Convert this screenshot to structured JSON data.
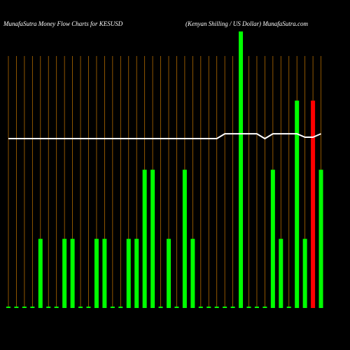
{
  "chart_data": {
    "type": "bar",
    "title": "MunafaSutra  Money Flow  Charts for KESUSD",
    "subtitle": "(Kenyan  Shilling / US Dollar) MunafaSutra.com",
    "categories": [
      null,
      null,
      null,
      null,
      null,
      null,
      null,
      null,
      null,
      null,
      null,
      null,
      null,
      null,
      null,
      null,
      null,
      null,
      null,
      null,
      null,
      null,
      null,
      null,
      null,
      null,
      null,
      null,
      null,
      null,
      null,
      null,
      null,
      null,
      null,
      null,
      null,
      null,
      null,
      null
    ],
    "values": [
      0.02,
      0.02,
      0.02,
      0.02,
      1,
      0.02,
      0.02,
      1,
      1,
      0.02,
      0.02,
      1,
      1,
      0.02,
      0.02,
      1,
      1,
      2,
      2,
      0.02,
      1,
      0.02,
      2,
      1,
      0.02,
      0.02,
      0.02,
      0.02,
      0.02,
      4,
      0.02,
      0.02,
      0.02,
      2,
      1,
      0.02,
      3,
      1,
      3,
      2
    ],
    "colors": [
      "#00ff00",
      "#00ff00",
      "#00ff00",
      "#00ff00",
      "#00ff00",
      "#00ff00",
      "#00ff00",
      "#00ff00",
      "#00ff00",
      "#00ff00",
      "#00ff00",
      "#00ff00",
      "#00ff00",
      "#00ff00",
      "#00ff00",
      "#00ff00",
      "#00ff00",
      "#00ff00",
      "#00ff00",
      "#00ff00",
      "#00ff00",
      "#00ff00",
      "#00ff00",
      "#00ff00",
      "#00ff00",
      "#00ff00",
      "#00ff00",
      "#00ff00",
      "#00ff00",
      "#00ff00",
      "#00ff00",
      "#00ff00",
      "#00ff00",
      "#00ff00",
      "#00ff00",
      "#00ff00",
      "#00ff00",
      "#00ff00",
      "#ff0000",
      "#00ff00"
    ],
    "line": {
      "color": "#ffffff",
      "values": [
        2.45,
        2.45,
        2.45,
        2.45,
        2.45,
        2.45,
        2.45,
        2.45,
        2.45,
        2.45,
        2.45,
        2.45,
        2.45,
        2.45,
        2.45,
        2.45,
        2.45,
        2.45,
        2.45,
        2.45,
        2.45,
        2.45,
        2.45,
        2.45,
        2.45,
        2.45,
        2.45,
        2.52,
        2.52,
        2.52,
        2.52,
        2.52,
        2.45,
        2.52,
        2.52,
        2.52,
        2.52,
        2.47,
        2.47,
        2.52
      ]
    },
    "ylim": [
      0,
      4.05
    ],
    "grid": true,
    "grid_color": "#b36b00"
  }
}
